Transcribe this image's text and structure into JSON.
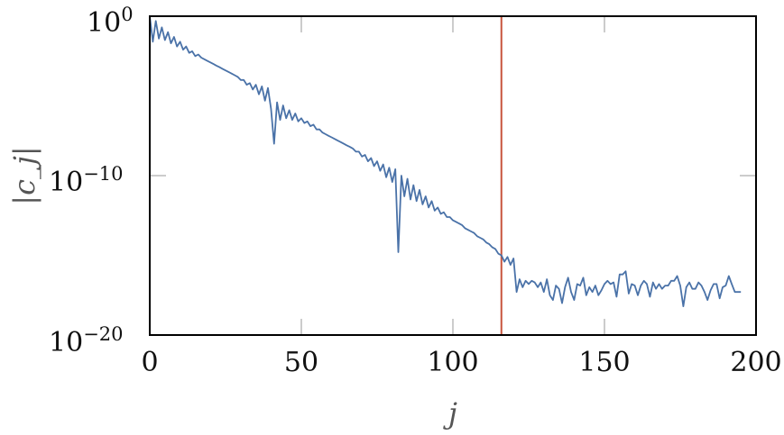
{
  "chart_data": {
    "type": "line",
    "title": "",
    "xlabel": "j",
    "ylabel": "|c_j|",
    "xlim": [
      0,
      200
    ],
    "ylim_log10": [
      -20,
      0
    ],
    "yscale": "log",
    "x_ticks": [
      "0",
      "50",
      "100",
      "150",
      "200"
    ],
    "y_ticks": [
      {
        "base": "10",
        "exp": "0"
      },
      {
        "base": "10",
        "exp": "−10"
      },
      {
        "base": "10",
        "exp": "−20"
      }
    ],
    "grid": false,
    "legend": null,
    "series": [
      {
        "name": "|c_j|",
        "color": "#4a72a8",
        "x_start": 0,
        "log10_values": [
          0,
          -1.6,
          -0.3,
          -1.4,
          -0.7,
          -1.5,
          -1.0,
          -1.7,
          -1.3,
          -1.9,
          -1.6,
          -2.1,
          -1.9,
          -2.3,
          -2.2,
          -2.5,
          -2.4,
          -2.6,
          -2.7,
          -2.8,
          -2.9,
          -3.0,
          -3.1,
          -3.2,
          -3.3,
          -3.4,
          -3.5,
          -3.6,
          -3.7,
          -3.8,
          -4.0,
          -4.0,
          -4.3,
          -4.2,
          -4.6,
          -4.3,
          -4.9,
          -4.4,
          -5.3,
          -4.5,
          -5.8,
          -8.0,
          -5.4,
          -6.5,
          -5.6,
          -6.4,
          -5.9,
          -6.5,
          -6.1,
          -6.6,
          -6.4,
          -6.7,
          -6.6,
          -6.9,
          -6.8,
          -7.1,
          -7.1,
          -7.3,
          -7.4,
          -7.5,
          -7.6,
          -7.7,
          -7.8,
          -7.9,
          -8.0,
          -8.1,
          -8.2,
          -8.3,
          -8.5,
          -8.5,
          -8.8,
          -8.7,
          -9.1,
          -8.9,
          -9.4,
          -9.1,
          -9.7,
          -9.3,
          -10.1,
          -9.5,
          -10.4,
          -9.6,
          -14.8,
          -10.0,
          -11.3,
          -10.2,
          -11.5,
          -10.6,
          -11.6,
          -10.9,
          -11.8,
          -11.3,
          -12.0,
          -11.6,
          -12.2,
          -12.0,
          -12.4,
          -12.3,
          -12.6,
          -12.6,
          -12.8,
          -12.9,
          -13.0,
          -13.1,
          -13.3,
          -13.4,
          -13.5,
          -13.6,
          -13.8,
          -13.9,
          -14.0,
          -14.2,
          -14.3,
          -14.5,
          -14.6,
          -14.9,
          -15.0,
          -15.4,
          -15.1,
          -15.6,
          -15.2,
          -17.3,
          -16.5,
          -17.0,
          -16.6,
          -16.8,
          -16.6,
          -16.7,
          -17.0,
          -16.7,
          -17.3,
          -16.5,
          -17.5,
          -17.8,
          -16.9,
          -17.1,
          -18.0,
          -17.0,
          -16.4,
          -17.3,
          -17.8,
          -16.8,
          -16.9,
          -16.4,
          -17.5,
          -17.0,
          -17.3,
          -16.9,
          -17.5,
          -17.2,
          -16.8,
          -16.6,
          -16.8,
          -16.7,
          -17.6,
          -16.2,
          -16.2,
          -16.0,
          -17.4,
          -16.8,
          -16.9,
          -17.5,
          -16.9,
          -16.6,
          -16.8,
          -17.6,
          -16.7,
          -17.1,
          -16.8,
          -17.1,
          -16.9,
          -16.9,
          -16.6,
          -16.6,
          -16.3,
          -16.9,
          -18.2,
          -17.0,
          -16.7,
          -17.1,
          -17.1,
          -16.7,
          -16.9,
          -17.3,
          -17.8,
          -17.2,
          -16.8,
          -16.8,
          -17.7,
          -17.0,
          -16.9,
          -16.3,
          -16.8,
          -17.3,
          -17.3,
          -17.3
        ],
        "note": "values are log10 |c_j|, read approximately from plot"
      }
    ],
    "annotations": [
      {
        "type": "vertical_line",
        "x": 116,
        "color": "#c8553d"
      }
    ]
  }
}
